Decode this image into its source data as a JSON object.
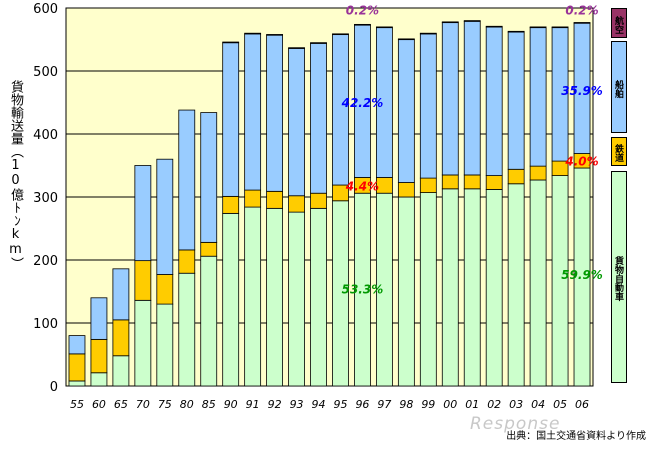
{
  "chart_data": {
    "type": "bar",
    "stacked": true,
    "ylabel": "貨物輸送量（10億ﾄﾝkm）",
    "ylim": [
      0,
      600
    ],
    "yticks": [
      0,
      100,
      200,
      300,
      400,
      500,
      600
    ],
    "categories": [
      "55",
      "60",
      "65",
      "70",
      "75",
      "80",
      "85",
      "90",
      "91",
      "92",
      "93",
      "94",
      "95",
      "96",
      "97",
      "98",
      "99",
      "00",
      "01",
      "02",
      "03",
      "04",
      "05",
      "06"
    ],
    "series": [
      {
        "name": "貨物自動車",
        "color": "#ccffcc",
        "values": [
          8,
          21,
          48,
          136,
          130,
          179,
          206,
          274,
          284,
          282,
          276,
          282,
          294,
          306,
          306,
          300,
          307,
          313,
          313,
          312,
          321,
          327,
          334,
          346
        ]
      },
      {
        "name": "鉄道",
        "color": "#ffcc00",
        "values": [
          43,
          53,
          57,
          63,
          47,
          37,
          22,
          27,
          27,
          27,
          26,
          24,
          25,
          25,
          25,
          23,
          23,
          22,
          22,
          22,
          23,
          22,
          23,
          23
        ]
      },
      {
        "name": "船舶",
        "color": "#99ccff",
        "values": [
          29,
          66,
          81,
          151,
          183,
          222,
          206,
          244,
          248,
          248,
          234,
          238,
          239,
          242,
          238,
          227,
          229,
          242,
          244,
          236,
          218,
          220,
          212,
          207
        ]
      },
      {
        "name": "航空",
        "color": "#993366",
        "values": [
          0,
          0,
          0,
          0,
          0,
          0,
          0,
          1,
          1,
          1,
          1,
          1,
          1,
          1,
          1,
          1,
          1,
          1,
          1,
          1,
          1,
          1,
          1,
          1
        ]
      }
    ],
    "annotations": [
      {
        "text": "0.2%",
        "category": "96",
        "y": 590,
        "color": "#993399"
      },
      {
        "text": "42.2%",
        "category": "96",
        "y": 443,
        "color": "#0000ff"
      },
      {
        "text": "4.4%",
        "category": "96",
        "y": 310,
        "color": "#ff0000"
      },
      {
        "text": "53.3%",
        "category": "96",
        "y": 147,
        "color": "#009900"
      },
      {
        "text": "0.2%",
        "category": "06",
        "y": 590,
        "color": "#993399"
      },
      {
        "text": "35.9%",
        "category": "06",
        "y": 462,
        "color": "#0000ff"
      },
      {
        "text": "4.0%",
        "category": "06",
        "y": 350,
        "color": "#ff0000"
      },
      {
        "text": "59.9%",
        "category": "06",
        "y": 170,
        "color": "#009900"
      }
    ]
  },
  "legend": {
    "air": "航空",
    "ship": "船舶",
    "rail": "鉄道",
    "truck": "貨物自動車"
  },
  "source_note": "出典：国土交通省資料より作成",
  "watermark": "Response"
}
